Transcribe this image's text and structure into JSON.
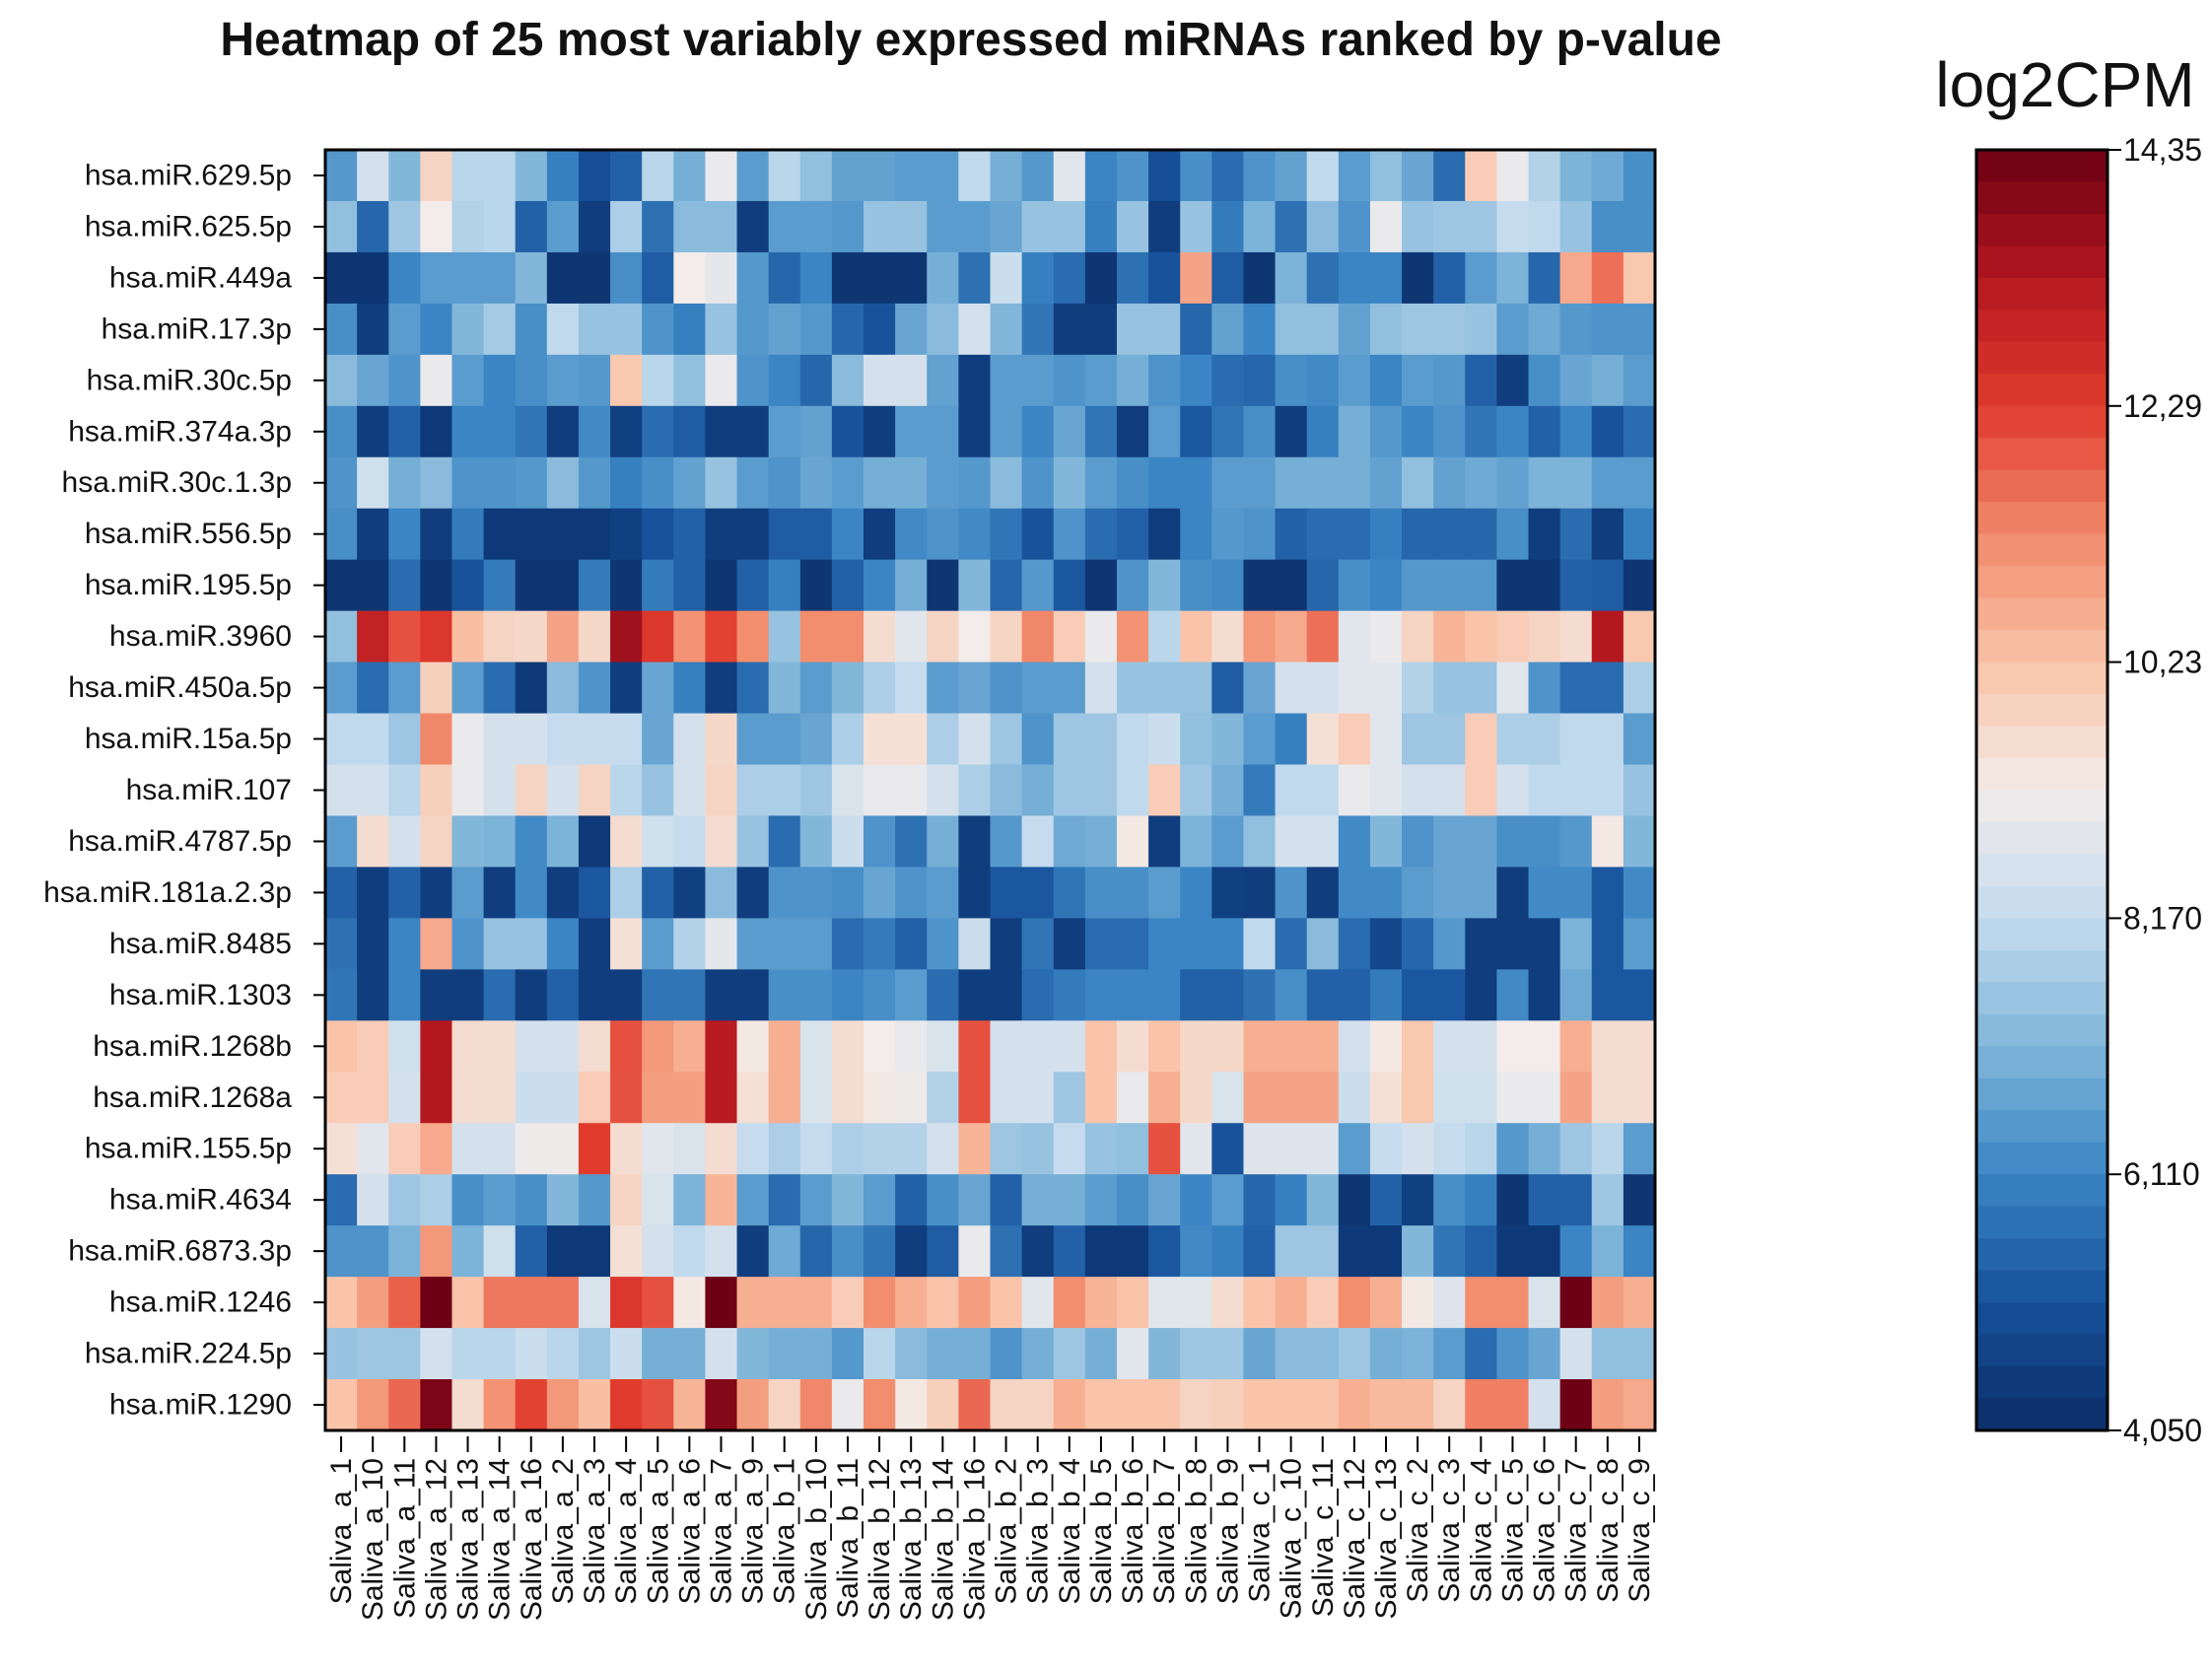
{
  "chart_data": {
    "type": "heatmap",
    "title": "Heatmap of 25 most variably expressed miRNAs ranked by p-value",
    "rows": [
      "hsa.miR.629.5p",
      "hsa.miR.625.5p",
      "hsa.miR.449a",
      "hsa.miR.17.3p",
      "hsa.miR.30c.5p",
      "hsa.miR.374a.3p",
      "hsa.miR.30c.1.3p",
      "hsa.miR.556.5p",
      "hsa.miR.195.5p",
      "hsa.miR.3960",
      "hsa.miR.450a.5p",
      "hsa.miR.15a.5p",
      "hsa.miR.107",
      "hsa.miR.4787.5p",
      "hsa.miR.181a.2.3p",
      "hsa.miR.8485",
      "hsa.miR.1303",
      "hsa.miR.1268b",
      "hsa.miR.1268a",
      "hsa.miR.155.5p",
      "hsa.miR.4634",
      "hsa.miR.6873.3p",
      "hsa.miR.1246",
      "hsa.miR.224.5p",
      "hsa.miR.1290"
    ],
    "columns": [
      "Saliva_a_1",
      "Saliva_a_10",
      "Saliva_a_11",
      "Saliva_a_12",
      "Saliva_a_13",
      "Saliva_a_14",
      "Saliva_a_16",
      "Saliva_a_2",
      "Saliva_a_3",
      "Saliva_a_4",
      "Saliva_a_5",
      "Saliva_a_6",
      "Saliva_a_7",
      "Saliva_a_9",
      "Saliva_b_1",
      "Saliva_b_10",
      "Saliva_b_11",
      "Saliva_b_12",
      "Saliva_b_13",
      "Saliva_b_14",
      "Saliva_b_16",
      "Saliva_b_2",
      "Saliva_b_3",
      "Saliva_b_4",
      "Saliva_b_5",
      "Saliva_b_6",
      "Saliva_b_7",
      "Saliva_b_8",
      "Saliva_b_9",
      "Saliva_c_1",
      "Saliva_c_10",
      "Saliva_c_11",
      "Saliva_c_12",
      "Saliva_c_13",
      "Saliva_c_2",
      "Saliva_c_3",
      "Saliva_c_4",
      "Saliva_c_5",
      "Saliva_c_6",
      "Saliva_c_7",
      "Saliva_c_8",
      "Saliva_c_9"
    ],
    "values": [
      [
        6.5,
        8.5,
        7.2,
        9.8,
        8.0,
        8.0,
        7.2,
        6.0,
        5.0,
        5.4,
        8.0,
        7.0,
        9.0,
        6.6,
        8.0,
        7.4,
        6.7,
        6.7,
        6.6,
        6.6,
        8.1,
        7.0,
        6.5,
        8.8,
        6.1,
        6.4,
        5.0,
        6.3,
        5.6,
        6.4,
        6.7,
        8.1,
        6.6,
        7.4,
        6.8,
        5.6,
        10.0,
        9.0,
        7.9,
        7.1,
        6.9,
        6.3
      ],
      [
        7.4,
        5.5,
        7.6,
        9.2,
        7.9,
        8.0,
        5.4,
        6.6,
        4.5,
        7.8,
        5.7,
        7.3,
        7.3,
        4.5,
        6.6,
        6.6,
        6.5,
        7.5,
        7.5,
        6.6,
        6.6,
        6.8,
        7.5,
        7.5,
        6.0,
        7.5,
        4.5,
        7.5,
        5.9,
        7.1,
        5.7,
        7.3,
        6.4,
        9.0,
        7.5,
        7.6,
        7.6,
        8.2,
        8.1,
        7.5,
        6.3,
        6.3
      ],
      [
        4.3,
        4.3,
        6.1,
        6.6,
        6.6,
        6.6,
        7.2,
        4.3,
        4.3,
        6.3,
        5.3,
        9.2,
        8.9,
        6.5,
        5.5,
        6.1,
        4.3,
        4.3,
        4.3,
        7.0,
        5.7,
        8.3,
        6.0,
        5.6,
        4.3,
        5.7,
        5.1,
        10.8,
        5.3,
        4.3,
        7.1,
        5.7,
        6.1,
        6.1,
        4.3,
        5.4,
        6.6,
        7.1,
        5.5,
        10.7,
        11.6,
        10.1
      ],
      [
        6.3,
        4.5,
        6.6,
        6.1,
        7.2,
        7.7,
        6.3,
        8.1,
        7.5,
        7.5,
        6.4,
        6.0,
        7.5,
        6.5,
        6.7,
        6.5,
        5.5,
        5.1,
        6.8,
        7.3,
        8.5,
        7.2,
        5.8,
        4.5,
        4.5,
        7.5,
        7.5,
        5.5,
        6.7,
        6.1,
        7.4,
        7.4,
        6.7,
        7.4,
        7.6,
        7.6,
        7.5,
        6.6,
        6.9,
        6.5,
        6.4,
        6.4
      ],
      [
        7.3,
        6.8,
        6.4,
        9.0,
        6.6,
        6.1,
        6.3,
        6.6,
        6.5,
        10.1,
        8.0,
        7.4,
        9.0,
        6.4,
        6.1,
        5.5,
        7.3,
        8.5,
        8.5,
        6.7,
        4.5,
        6.6,
        6.6,
        6.4,
        6.6,
        7.0,
        6.4,
        6.1,
        5.6,
        5.5,
        6.3,
        6.2,
        6.6,
        6.1,
        6.6,
        6.5,
        5.4,
        4.5,
        6.3,
        6.8,
        7.0,
        6.6
      ],
      [
        6.3,
        4.5,
        5.4,
        4.4,
        6.1,
        6.1,
        5.8,
        4.5,
        6.2,
        4.6,
        5.6,
        5.3,
        4.5,
        4.5,
        6.6,
        6.7,
        5.1,
        4.5,
        6.6,
        6.6,
        4.5,
        6.6,
        6.1,
        6.8,
        5.8,
        4.5,
        6.6,
        5.2,
        5.8,
        6.3,
        4.5,
        6.0,
        7.0,
        6.5,
        6.1,
        6.4,
        5.8,
        6.1,
        5.4,
        6.1,
        5.1,
        5.6
      ],
      [
        6.4,
        8.4,
        7.0,
        7.3,
        6.4,
        6.4,
        6.5,
        7.3,
        6.5,
        6.0,
        6.3,
        6.7,
        7.5,
        6.6,
        6.4,
        6.8,
        6.6,
        7.0,
        7.0,
        6.6,
        6.5,
        7.3,
        6.4,
        7.2,
        6.6,
        6.3,
        6.1,
        6.1,
        6.6,
        6.6,
        7.0,
        7.0,
        7.0,
        6.7,
        7.4,
        6.7,
        6.9,
        6.7,
        7.1,
        7.1,
        6.6,
        6.6
      ],
      [
        6.3,
        4.5,
        6.1,
        4.5,
        5.9,
        4.4,
        4.4,
        4.4,
        4.4,
        4.6,
        5.1,
        5.4,
        4.5,
        4.5,
        5.3,
        5.3,
        6.1,
        4.5,
        6.2,
        6.4,
        6.2,
        5.8,
        5.1,
        6.4,
        5.6,
        5.4,
        4.5,
        6.1,
        6.5,
        6.4,
        5.4,
        5.6,
        5.6,
        6.0,
        5.5,
        5.5,
        5.5,
        6.3,
        4.5,
        5.6,
        4.5,
        6.0
      ],
      [
        4.3,
        4.3,
        5.6,
        4.3,
        5.1,
        5.9,
        4.3,
        4.3,
        5.9,
        4.3,
        5.9,
        5.4,
        4.3,
        5.4,
        6.0,
        4.3,
        5.4,
        6.1,
        7.0,
        4.3,
        7.2,
        5.5,
        6.5,
        5.2,
        4.3,
        6.4,
        7.2,
        6.3,
        6.2,
        4.3,
        4.3,
        5.5,
        6.3,
        6.1,
        6.5,
        6.5,
        6.5,
        4.3,
        4.3,
        5.4,
        5.3,
        4.3
      ],
      [
        7.4,
        13.0,
        12.0,
        12.4,
        10.3,
        9.8,
        9.7,
        10.8,
        9.7,
        13.6,
        12.4,
        11.1,
        12.2,
        11.2,
        7.5,
        11.2,
        11.2,
        9.6,
        8.8,
        9.8,
        9.2,
        9.8,
        11.3,
        10.0,
        9.0,
        11.1,
        8.0,
        10.2,
        9.6,
        11.0,
        10.7,
        11.6,
        8.8,
        9.0,
        9.8,
        10.5,
        10.2,
        10.0,
        9.8,
        9.6,
        13.3,
        10.1
      ],
      [
        6.6,
        5.6,
        6.6,
        9.9,
        6.6,
        5.6,
        4.4,
        7.3,
        6.4,
        4.5,
        6.8,
        6.0,
        4.5,
        5.6,
        7.2,
        6.6,
        7.2,
        7.8,
        8.2,
        6.6,
        6.8,
        6.4,
        6.6,
        6.6,
        8.5,
        7.5,
        7.5,
        7.5,
        5.3,
        6.8,
        8.5,
        8.5,
        8.8,
        8.8,
        7.9,
        7.5,
        7.5,
        8.8,
        6.4,
        5.6,
        5.6,
        7.8
      ],
      [
        8.1,
        8.1,
        7.6,
        11.3,
        9.0,
        8.5,
        8.5,
        8.2,
        8.2,
        8.2,
        6.8,
        8.5,
        9.7,
        6.6,
        6.6,
        6.8,
        7.8,
        9.5,
        9.5,
        7.8,
        8.5,
        7.6,
        6.4,
        7.6,
        7.6,
        8.1,
        8.3,
        7.4,
        7.2,
        6.6,
        6.0,
        9.5,
        10.0,
        8.8,
        7.6,
        7.6,
        10.0,
        7.8,
        7.8,
        8.1,
        8.1,
        6.6
      ],
      [
        8.5,
        8.5,
        8.0,
        9.9,
        9.0,
        8.5,
        9.8,
        8.5,
        9.8,
        8.0,
        7.5,
        8.5,
        9.8,
        7.8,
        7.8,
        7.6,
        8.6,
        9.0,
        9.0,
        8.5,
        7.8,
        7.3,
        7.0,
        7.6,
        7.6,
        8.1,
        10.0,
        7.6,
        7.0,
        5.9,
        8.1,
        8.1,
        9.0,
        8.8,
        8.5,
        8.5,
        10.0,
        8.5,
        8.1,
        8.1,
        8.1,
        7.5
      ],
      [
        6.6,
        9.6,
        8.5,
        9.8,
        7.2,
        7.1,
        6.2,
        7.1,
        4.4,
        9.6,
        8.4,
        8.2,
        9.6,
        7.5,
        5.6,
        7.2,
        8.3,
        6.4,
        5.7,
        7.0,
        4.5,
        6.5,
        8.2,
        6.9,
        7.0,
        9.3,
        4.5,
        7.1,
        6.6,
        7.4,
        8.5,
        8.5,
        6.2,
        7.2,
        6.4,
        6.8,
        6.8,
        6.3,
        6.3,
        6.5,
        9.3,
        7.2
      ],
      [
        5.4,
        4.5,
        5.4,
        4.5,
        6.6,
        4.5,
        6.2,
        4.5,
        5.2,
        7.8,
        5.4,
        4.6,
        7.3,
        4.5,
        6.4,
        6.4,
        6.3,
        6.8,
        6.4,
        6.6,
        4.5,
        5.2,
        5.2,
        5.8,
        6.3,
        6.3,
        6.6,
        6.1,
        4.6,
        4.5,
        6.4,
        4.5,
        6.2,
        6.2,
        6.6,
        6.8,
        6.8,
        4.5,
        6.2,
        6.2,
        5.2,
        6.2
      ],
      [
        5.7,
        4.5,
        6.1,
        10.7,
        6.4,
        7.5,
        7.5,
        6.1,
        4.5,
        9.5,
        6.6,
        7.9,
        8.9,
        6.6,
        6.6,
        6.6,
        5.6,
        5.9,
        5.4,
        6.4,
        8.3,
        4.5,
        5.8,
        4.5,
        5.6,
        5.6,
        6.1,
        6.1,
        6.1,
        8.1,
        5.6,
        7.3,
        5.6,
        4.8,
        5.5,
        6.5,
        4.5,
        4.5,
        4.5,
        7.1,
        5.2,
        6.6
      ],
      [
        5.8,
        4.5,
        6.1,
        4.5,
        4.5,
        5.6,
        4.5,
        5.4,
        4.5,
        4.5,
        5.8,
        5.8,
        4.5,
        4.5,
        6.3,
        6.3,
        6.1,
        6.3,
        6.6,
        5.6,
        4.5,
        4.5,
        5.6,
        5.9,
        6.1,
        6.1,
        6.1,
        5.4,
        5.4,
        5.7,
        6.3,
        5.4,
        5.4,
        5.9,
        5.2,
        5.2,
        4.5,
        6.2,
        4.5,
        6.9,
        5.2,
        5.2
      ],
      [
        10.2,
        10.0,
        8.4,
        13.3,
        9.6,
        9.6,
        8.5,
        8.5,
        9.6,
        12.0,
        11.0,
        10.6,
        13.2,
        9.3,
        10.6,
        8.6,
        9.6,
        9.2,
        9.0,
        8.6,
        12.0,
        8.5,
        8.5,
        8.5,
        10.2,
        9.6,
        10.2,
        9.7,
        9.7,
        10.6,
        10.6,
        10.6,
        8.5,
        9.3,
        10.1,
        8.5,
        8.5,
        9.2,
        9.2,
        10.6,
        9.6,
        9.6
      ],
      [
        10.0,
        10.0,
        8.5,
        13.3,
        9.6,
        9.6,
        8.3,
        8.3,
        10.0,
        12.0,
        10.9,
        10.9,
        13.2,
        9.5,
        10.6,
        8.6,
        9.6,
        9.3,
        9.1,
        7.9,
        12.0,
        8.5,
        8.5,
        7.6,
        10.2,
        9.0,
        10.6,
        9.7,
        8.6,
        10.8,
        10.8,
        10.8,
        8.3,
        9.5,
        10.1,
        8.4,
        8.4,
        9.0,
        9.0,
        10.8,
        9.6,
        9.6
      ],
      [
        9.5,
        8.8,
        10.0,
        10.7,
        8.5,
        8.5,
        9.1,
        9.1,
        12.3,
        9.6,
        8.8,
        8.6,
        9.6,
        8.2,
        7.8,
        8.2,
        7.8,
        7.9,
        7.9,
        8.5,
        10.5,
        7.6,
        7.5,
        8.2,
        7.5,
        7.4,
        12.0,
        8.8,
        5.1,
        8.7,
        8.7,
        8.7,
        6.6,
        8.2,
        8.5,
        8.2,
        8.0,
        6.5,
        7.0,
        7.6,
        8.0,
        6.6
      ],
      [
        5.6,
        8.5,
        7.6,
        7.8,
        6.3,
        6.6,
        6.3,
        7.2,
        6.5,
        9.8,
        8.6,
        7.1,
        10.5,
        6.6,
        5.6,
        6.6,
        7.2,
        6.6,
        5.4,
        6.3,
        6.8,
        5.4,
        7.0,
        7.0,
        6.6,
        6.3,
        6.8,
        6.1,
        6.6,
        5.5,
        6.0,
        7.2,
        4.3,
        5.4,
        4.6,
        6.3,
        6.0,
        4.3,
        5.4,
        5.4,
        7.6,
        4.3
      ],
      [
        6.4,
        6.4,
        7.1,
        11.0,
        7.1,
        8.4,
        5.4,
        4.4,
        4.4,
        9.5,
        8.5,
        8.1,
        8.5,
        4.5,
        6.9,
        5.5,
        6.3,
        5.8,
        4.5,
        5.3,
        9.0,
        5.7,
        4.5,
        5.4,
        4.4,
        4.4,
        5.2,
        6.2,
        6.0,
        5.4,
        7.6,
        7.6,
        4.4,
        4.4,
        7.2,
        5.8,
        5.4,
        4.4,
        4.4,
        6.1,
        7.1,
        6.1
      ],
      [
        10.2,
        10.9,
        11.8,
        14.3,
        10.2,
        11.5,
        11.5,
        11.5,
        8.6,
        12.4,
        12.0,
        9.3,
        14.3,
        10.6,
        10.6,
        10.6,
        10.0,
        11.2,
        10.6,
        10.2,
        10.9,
        10.2,
        8.8,
        11.2,
        10.5,
        10.2,
        8.8,
        8.8,
        9.6,
        10.2,
        10.6,
        10.0,
        11.2,
        10.6,
        9.3,
        8.7,
        11.2,
        11.2,
        8.6,
        14.3,
        10.9,
        10.6
      ],
      [
        7.5,
        7.6,
        7.6,
        8.5,
        8.0,
        8.0,
        8.3,
        8.0,
        7.6,
        8.3,
        7.0,
        7.0,
        8.5,
        7.2,
        7.0,
        7.0,
        6.5,
        8.0,
        7.3,
        7.0,
        7.0,
        6.4,
        7.0,
        7.6,
        7.0,
        8.8,
        7.2,
        7.6,
        7.6,
        6.8,
        7.3,
        7.3,
        7.6,
        7.0,
        7.1,
        6.6,
        5.6,
        6.4,
        6.8,
        8.5,
        7.4,
        7.4
      ],
      [
        10.2,
        11.0,
        11.7,
        14.1,
        9.6,
        11.1,
        12.2,
        11.0,
        10.3,
        12.3,
        12.0,
        10.5,
        14.0,
        10.9,
        9.8,
        11.3,
        9.0,
        11.2,
        9.3,
        9.9,
        11.7,
        9.8,
        9.8,
        10.6,
        10.2,
        10.2,
        10.2,
        9.8,
        9.9,
        10.2,
        10.2,
        10.2,
        10.6,
        10.4,
        10.4,
        9.8,
        11.4,
        11.4,
        8.5,
        14.3,
        10.9,
        10.7
      ]
    ],
    "colorbar": {
      "title": "log2CPM",
      "min": 4.05,
      "max": 14.35,
      "ticks": [
        "4,050",
        "6,110",
        "8,170",
        "10,23",
        "12,29",
        "14,35"
      ],
      "colors_low_to_high": [
        "#0a2d66",
        "#17519a",
        "#3b86c4",
        "#7fb5d9",
        "#c5dcee",
        "#f3ecea",
        "#f9c3a7",
        "#f28a6b",
        "#e03b2d",
        "#b3171f",
        "#6b0014"
      ]
    }
  }
}
